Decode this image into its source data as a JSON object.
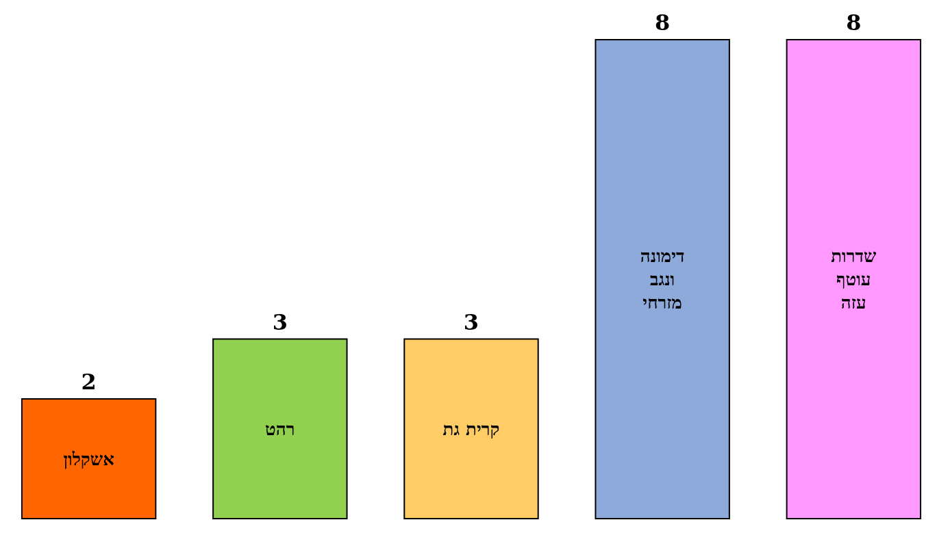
{
  "chart_data": {
    "type": "bar",
    "categories": [
      "אשקלון",
      "רהט",
      "קרית גת",
      "דימונה ונגב מזרחי",
      "שדרות עוטף עזה"
    ],
    "values": [
      2,
      3,
      3,
      8,
      8
    ],
    "colors": [
      "#ff6600",
      "#92d050",
      "#ffcc66",
      "#8eaadb",
      "#ff99ff"
    ],
    "data_labels": true
  }
}
